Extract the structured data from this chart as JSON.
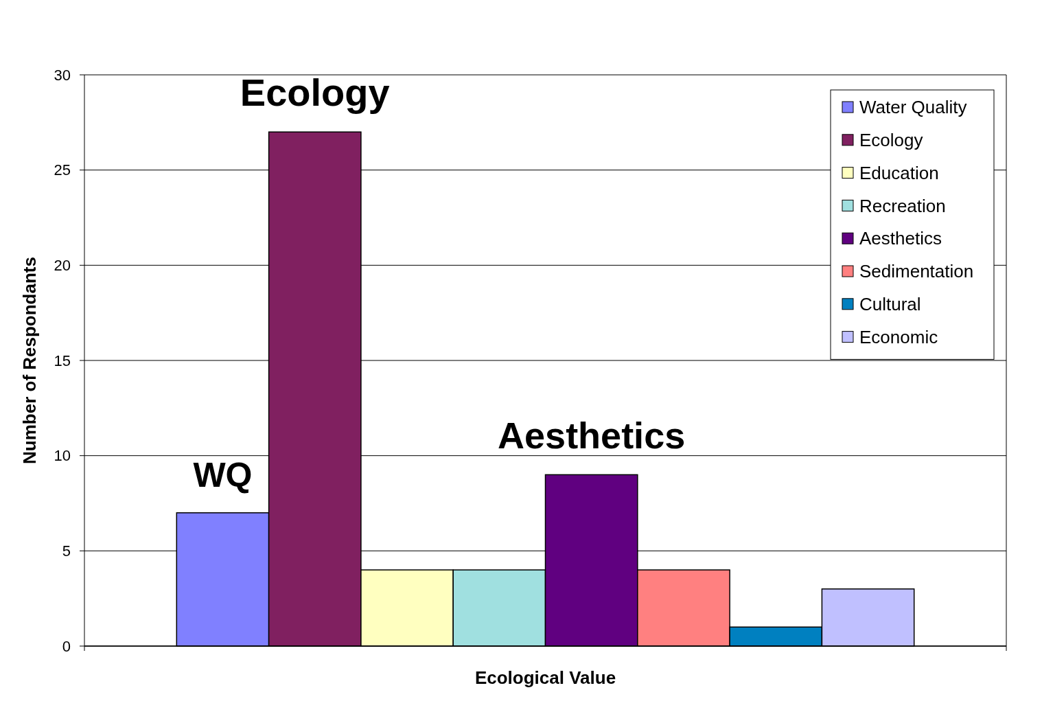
{
  "chart_data": {
    "type": "bar",
    "xlabel": "Ecological Value",
    "ylabel": "Number of Respondants",
    "categories": [
      null
    ],
    "series": [
      {
        "name": "Water Quality",
        "color": "#8080ff",
        "values": [
          7
        ]
      },
      {
        "name": "Ecology",
        "color": "#802060",
        "values": [
          27
        ]
      },
      {
        "name": "Education",
        "color": "#ffffc0",
        "values": [
          4
        ]
      },
      {
        "name": "Recreation",
        "color": "#a0e0e0",
        "values": [
          4
        ]
      },
      {
        "name": "Aesthetics",
        "color": "#600080",
        "values": [
          9
        ]
      },
      {
        "name": "Sedimentation",
        "color": "#ff8080",
        "values": [
          4
        ]
      },
      {
        "name": "Cultural",
        "color": "#0080c0",
        "values": [
          1
        ]
      },
      {
        "name": "Economic",
        "color": "#c0c0ff",
        "values": [
          3
        ]
      }
    ],
    "ylim": [
      0,
      30
    ],
    "yticks": [
      0,
      5,
      10,
      15,
      20,
      25,
      30
    ],
    "grid": "y",
    "legend": "top right",
    "annotations": [
      {
        "text": "Ecology",
        "y": 27
      },
      {
        "text": "WQ",
        "y": 7
      },
      {
        "text": "Aesthetics",
        "y": 9
      }
    ]
  }
}
